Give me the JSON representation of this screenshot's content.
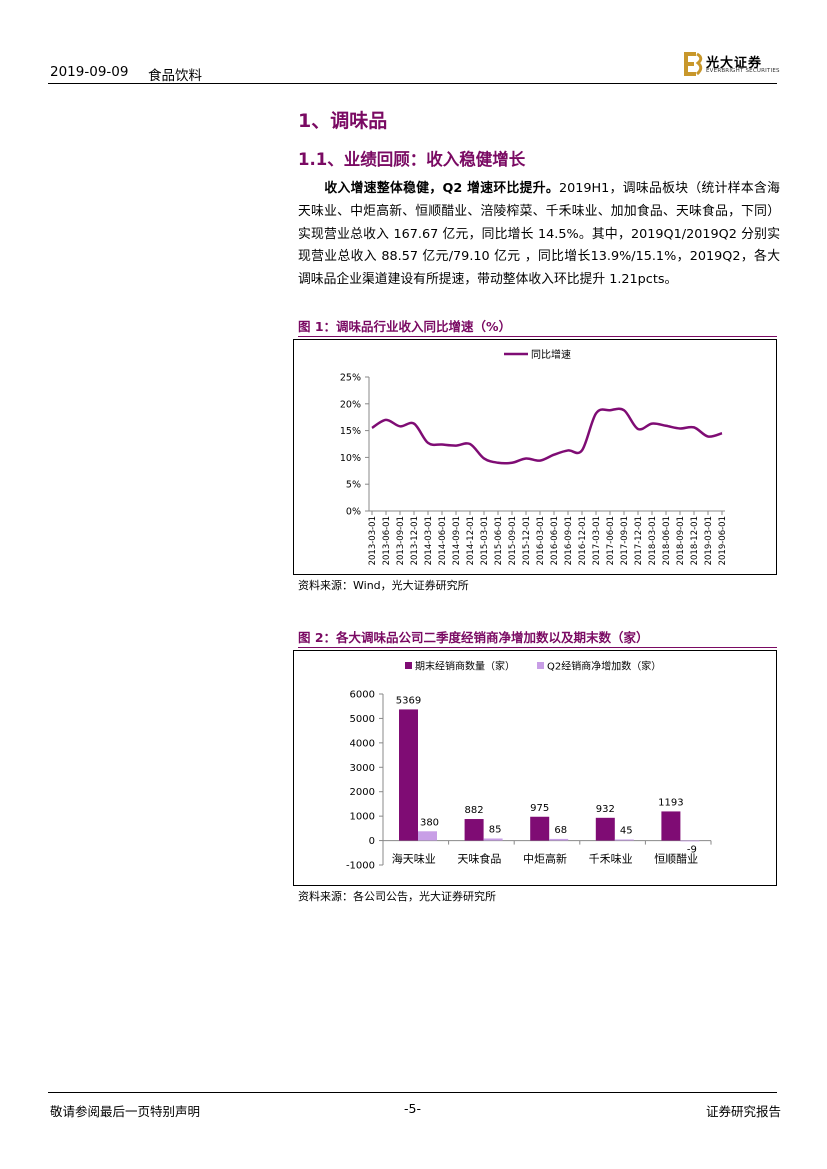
{
  "header": {
    "date": "2019-09-09",
    "category": "食品饮料",
    "logo_cn": "光大证券",
    "logo_en": "EVERBRIGHT SECURITIES"
  },
  "section": {
    "title": "1、调味品",
    "subtitle": "1.1、业绩回顾：收入稳健增长"
  },
  "body": {
    "lead_bold": "收入增速整体稳健，Q2 增速环比提升。",
    "text": "2019H1，调味品板块（统计样本含海天味业、中炬高新、恒顺醋业、涪陵榨菜、千禾味业、加加食品、天味食品，下同）实现营业总收入 167.67 亿元，同比增长 14.5%。其中，2019Q1/2019Q2 分别实现营业总收入 88.57 亿元/79.10 亿元 ，同比增长13.9%/15.1%，2019Q2，各大调味品企业渠道建设有所提速，带动整体收入环比提升 1.21pcts。"
  },
  "figure1": {
    "title": "图 1：调味品行业收入同比增速（%）",
    "source": "资料来源：Wind，光大证券研究所"
  },
  "figure2": {
    "title": "图 2：各大调味品公司二季度经销商净增加数以及期末数（家）",
    "source": "资料来源：各公司公告，光大证券研究所"
  },
  "footer": {
    "left": "敬请参阅最后一页特别声明",
    "page": "-5-",
    "right": "证券研究报告"
  },
  "colors": {
    "accent": "#7a0a63",
    "series_dark": "#7f0c74",
    "series_light": "#c89ee6"
  },
  "chart_data": [
    {
      "type": "line",
      "legend": [
        "同比增速"
      ],
      "legend_position": "top",
      "ylim": [
        0,
        25
      ],
      "yticks": [
        "0%",
        "5%",
        "10%",
        "15%",
        "20%",
        "25%"
      ],
      "categories": [
        "2013-03-01",
        "2013-06-01",
        "2013-09-01",
        "2013-12-01",
        "2014-03-01",
        "2014-06-01",
        "2014-09-01",
        "2014-12-01",
        "2015-03-01",
        "2015-06-01",
        "2015-09-01",
        "2015-12-01",
        "2016-03-01",
        "2016-06-01",
        "2016-09-01",
        "2016-12-01",
        "2017-03-01",
        "2017-06-01",
        "2017-09-01",
        "2017-12-01",
        "2018-03-01",
        "2018-06-01",
        "2018-09-01",
        "2018-12-01",
        "2019-03-01",
        "2019-06-01"
      ],
      "series": [
        {
          "name": "同比增速",
          "values": [
            15.5,
            17.0,
            15.8,
            16.3,
            12.7,
            12.4,
            12.2,
            12.5,
            9.8,
            9.0,
            9.0,
            9.8,
            9.4,
            10.5,
            11.3,
            11.3,
            18.2,
            18.8,
            18.8,
            15.3,
            16.3,
            15.9,
            15.4,
            15.6,
            13.9,
            14.5
          ]
        }
      ]
    },
    {
      "type": "bar",
      "legend": [
        "期末经销商数量（家）",
        "Q2经销商净增加数（家）"
      ],
      "legend_position": "top",
      "ylim": [
        -1000,
        6000
      ],
      "yticks": [
        "-1000",
        "0",
        "1000",
        "2000",
        "3000",
        "4000",
        "5000",
        "6000"
      ],
      "categories": [
        "海天味业",
        "天味食品",
        "中炬高新",
        "千禾味业",
        "恒顺醋业"
      ],
      "series": [
        {
          "name": "期末经销商数量（家）",
          "values": [
            5369,
            882,
            975,
            932,
            1193
          ],
          "labels": [
            "5369",
            "882",
            "975",
            "932",
            "1193"
          ]
        },
        {
          "name": "Q2经销商净增加数（家）",
          "values": [
            380,
            85,
            68,
            45,
            -9
          ],
          "labels": [
            "380",
            "85",
            "68",
            "45",
            "-9"
          ]
        }
      ]
    }
  ]
}
